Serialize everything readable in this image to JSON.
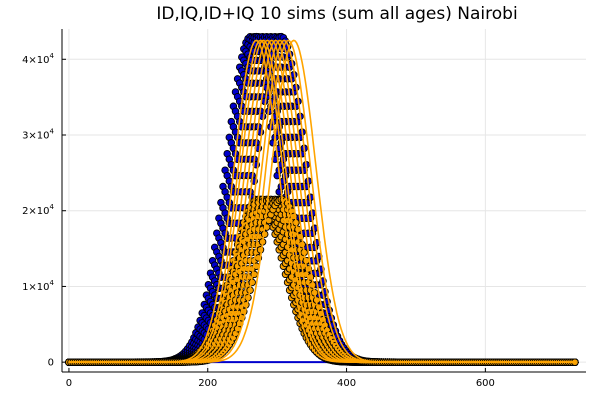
{
  "chart_data": {
    "type": "scatter",
    "title": "ID,IQ,ID+IQ 10 sims (sum all ages) Nairobi",
    "xlabel": "",
    "ylabel": "",
    "xlim": [
      -10,
      745
    ],
    "ylim": [
      -1300,
      44000
    ],
    "grid": true,
    "legend": "none",
    "x_ticks": [
      {
        "value": 0,
        "label": "0"
      },
      {
        "value": 200,
        "label": "200"
      },
      {
        "value": 400,
        "label": "400"
      },
      {
        "value": 600,
        "label": "600"
      }
    ],
    "y_ticks": [
      {
        "value": 0,
        "mantissa": "0",
        "exp": ""
      },
      {
        "value": 10000,
        "mantissa": "1×10",
        "exp": "4"
      },
      {
        "value": 20000,
        "mantissa": "2×10",
        "exp": "4"
      },
      {
        "value": 30000,
        "mantissa": "3×10",
        "exp": "4"
      },
      {
        "value": 40000,
        "mantissa": "4×10",
        "exp": "4"
      }
    ],
    "x_end": 730,
    "colors": {
      "id_marker": "#0000cc",
      "iq_marker": "#f5a000",
      "line": "#ffa500",
      "baseline": "#0000cc",
      "outline": "#000000"
    },
    "series": [
      {
        "kind": "ID",
        "style": "markers",
        "peaks_x": [
          262,
          266,
          270,
          274,
          278,
          284,
          290,
          296,
          302,
          306
        ],
        "peak_y": 43000,
        "width": 36
      },
      {
        "kind": "IQ",
        "style": "markers",
        "peaks_x": [
          272,
          276,
          280,
          285,
          290,
          296,
          302,
          307
        ],
        "peak_y": 21500,
        "width": 36
      },
      {
        "kind": "ID+IQ",
        "style": "lines",
        "peaks_x": [
          270,
          276,
          280,
          286,
          292,
          298,
          304,
          310,
          316,
          324
        ],
        "peak_y": 42500,
        "width": 32
      }
    ]
  }
}
